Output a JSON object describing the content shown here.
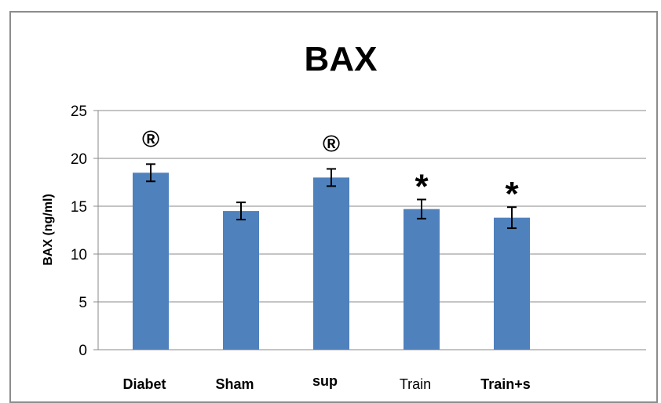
{
  "chart_data": {
    "type": "bar",
    "title": "BAX",
    "xlabel": "",
    "ylabel": "BAX (ng/ml)",
    "ylim": [
      0,
      25
    ],
    "yticks": [
      0,
      5,
      10,
      15,
      20,
      25
    ],
    "grid": true,
    "categories": [
      "Diabet",
      "Sham",
      "sup",
      "Train",
      "Train+s"
    ],
    "values": [
      18.5,
      14.5,
      18.0,
      14.7,
      13.8
    ],
    "errors": [
      0.9,
      0.9,
      0.9,
      1.0,
      1.1
    ],
    "annotations": [
      "®",
      "",
      "®",
      "*",
      "*"
    ],
    "bar_color": "#4f81bd"
  }
}
